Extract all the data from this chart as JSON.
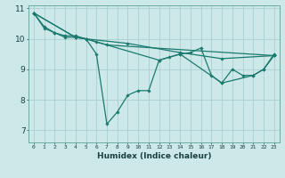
{
  "title": "",
  "xlabel": "Humidex (Indice chaleur)",
  "ylabel": "",
  "background_color": "#cce8e8",
  "grid_color": "#aacfcf",
  "line_color": "#1a7a6e",
  "xlim": [
    -0.5,
    23.5
  ],
  "ylim": [
    6.6,
    11.1
  ],
  "yticks": [
    7,
    8,
    9,
    10,
    11
  ],
  "xticks": [
    0,
    1,
    2,
    3,
    4,
    5,
    6,
    7,
    8,
    9,
    10,
    11,
    12,
    13,
    14,
    15,
    16,
    17,
    18,
    19,
    20,
    21,
    22,
    23
  ],
  "series": [
    {
      "x": [
        0,
        1,
        2,
        3,
        4,
        5,
        6,
        7,
        8,
        9,
        10,
        11,
        12,
        13,
        14,
        15,
        16,
        17,
        18,
        19,
        20,
        21,
        22,
        23
      ],
      "y": [
        10.85,
        10.4,
        10.2,
        10.1,
        10.1,
        10.0,
        9.5,
        7.2,
        7.6,
        8.15,
        8.3,
        8.3,
        9.3,
        9.4,
        9.5,
        9.55,
        9.7,
        8.8,
        8.55,
        9.0,
        8.8,
        8.8,
        9.0,
        9.5
      ]
    },
    {
      "x": [
        0,
        1,
        2,
        3,
        4,
        5,
        6,
        7,
        23
      ],
      "y": [
        10.85,
        10.35,
        10.2,
        10.05,
        10.05,
        10.0,
        9.9,
        9.8,
        9.45
      ]
    },
    {
      "x": [
        0,
        4,
        5,
        9,
        14,
        18,
        23
      ],
      "y": [
        10.85,
        10.05,
        10.0,
        9.85,
        9.55,
        9.35,
        9.45
      ]
    },
    {
      "x": [
        0,
        4,
        5,
        12,
        14,
        18,
        21,
        22,
        23
      ],
      "y": [
        10.85,
        10.05,
        10.0,
        9.3,
        9.5,
        8.55,
        8.8,
        9.0,
        9.45
      ]
    }
  ]
}
